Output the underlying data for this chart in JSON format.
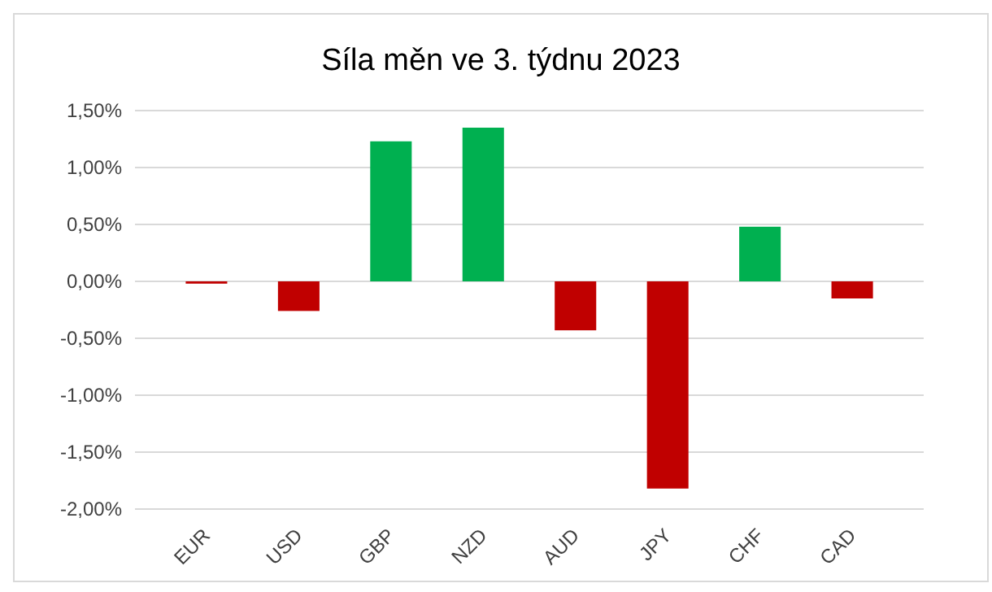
{
  "chart_data": {
    "type": "bar",
    "title": "Síla měn ve 3. týdnu 2023",
    "categories": [
      "EUR",
      "USD",
      "GBP",
      "NZD",
      "AUD",
      "JPY",
      "CHF",
      "CAD"
    ],
    "values": [
      -0.02,
      -0.26,
      1.23,
      1.35,
      -0.43,
      -1.82,
      0.48,
      -0.15
    ],
    "colors": [
      "#c00000",
      "#c00000",
      "#00b050",
      "#00b050",
      "#c00000",
      "#c00000",
      "#00b050",
      "#c00000"
    ],
    "ylim": [
      -2,
      1.5
    ],
    "yticks": [
      {
        "value": -2,
        "label": "-2,00%"
      },
      {
        "value": -1.5,
        "label": "-1,50%"
      },
      {
        "value": -1,
        "label": "-1,00%"
      },
      {
        "value": -0.5,
        "label": "-0,50%"
      },
      {
        "value": 0,
        "label": "0,00%"
      },
      {
        "value": 0.5,
        "label": "0,50%"
      },
      {
        "value": 1,
        "label": "1,00%"
      },
      {
        "value": 1.5,
        "label": "1,50%"
      }
    ],
    "grid": true
  }
}
